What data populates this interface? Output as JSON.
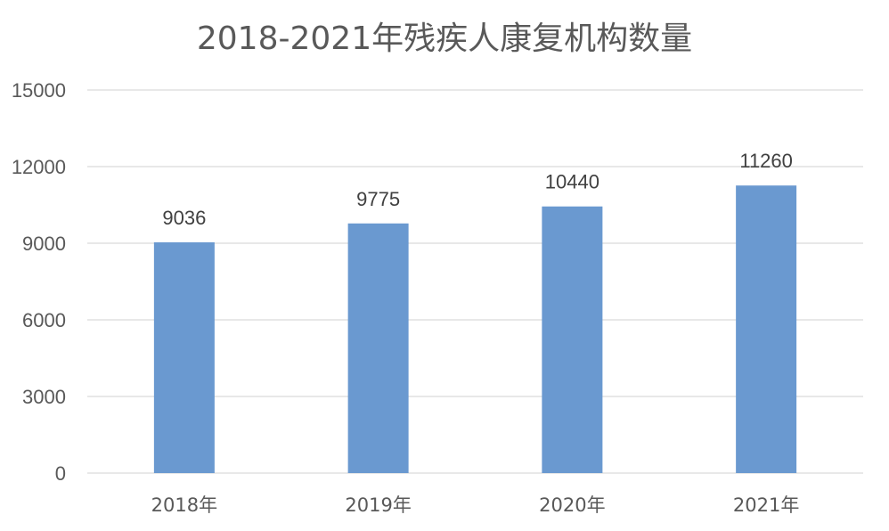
{
  "chart_data": {
    "type": "bar",
    "title": "2018-2021年残疾人康复机构数量",
    "categories": [
      "2018年",
      "2019年",
      "2020年",
      "2021年"
    ],
    "series": [
      {
        "values": [
          9036,
          9775,
          10440,
          11260
        ],
        "color": "#6a99d0"
      }
    ],
    "data_labels": [
      "9036",
      "9775",
      "10440",
      "11260"
    ],
    "xlabel": "",
    "ylabel": "",
    "ylim": [
      0,
      15000
    ],
    "yticks": [
      0,
      3000,
      6000,
      9000,
      12000,
      15000
    ],
    "ytick_labels": [
      "0",
      "3000",
      "6000",
      "9000",
      "12000",
      "15000"
    ],
    "grid": true,
    "legend": "none",
    "colors": {
      "bar": "#6a99d0",
      "grid": "#d9d9d9",
      "text": "#595959",
      "data_label": "#404040"
    }
  }
}
